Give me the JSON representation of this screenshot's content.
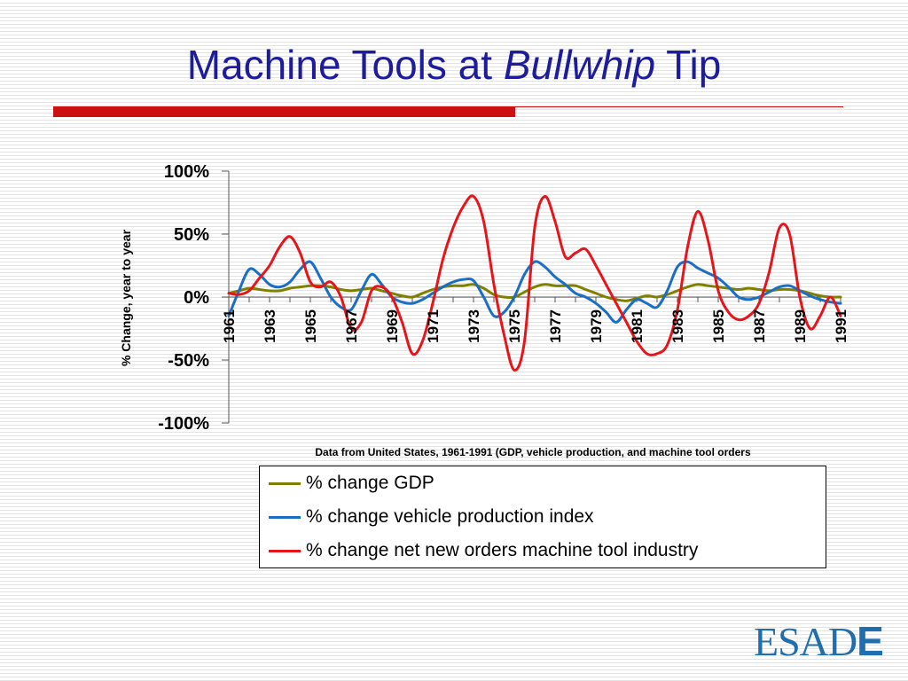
{
  "slide": {
    "title_prefix": "Machine Tools at ",
    "title_italic": "Bullwhip",
    "title_suffix": " Tip"
  },
  "logo": {
    "text_main": "ESAD",
    "text_last": "E"
  },
  "colors": {
    "title": "#1c1c9c",
    "accent_bar": "#cc1111",
    "gdp": "#808000",
    "vehicle": "#1a6fc4",
    "orders": "#e8141a",
    "logo": "#1f6fae"
  },
  "chart_data": {
    "type": "line",
    "title": "",
    "ylabel": "% Change, year to year",
    "xlabel": "Data from United States, 1961-1991 (GDP, vehicle production, and machine tool orders",
    "ylim": [
      -100,
      100
    ],
    "yticks": [
      100,
      50,
      0,
      -50,
      -100
    ],
    "ytick_labels": [
      "100%",
      "50%",
      "0%",
      "-50%",
      "-100%"
    ],
    "xlim": [
      1961,
      1991
    ],
    "xticks": [
      1961,
      1963,
      1965,
      1967,
      1969,
      1971,
      1973,
      1975,
      1977,
      1979,
      1981,
      1983,
      1985,
      1987,
      1989,
      1991
    ],
    "xtick_labels": [
      "1961",
      "1963",
      "1965",
      "1967",
      "1969",
      "1971",
      "1973",
      "1975",
      "1977",
      "1979",
      "1981",
      "1983",
      "1985",
      "1987",
      "1989",
      "1991"
    ],
    "grid": false,
    "legend_position": "bottom",
    "series": [
      {
        "name": "% change GDP",
        "color": "#808000",
        "x": [
          1961,
          1961.5,
          1962,
          1962.5,
          1963,
          1963.5,
          1964,
          1964.5,
          1965,
          1965.5,
          1966,
          1966.5,
          1967,
          1967.5,
          1968,
          1968.5,
          1969,
          1969.5,
          1970,
          1970.5,
          1971,
          1971.5,
          1972,
          1972.5,
          1973,
          1973.5,
          1974,
          1974.5,
          1975,
          1975.5,
          1976,
          1976.5,
          1977,
          1977.5,
          1978,
          1978.5,
          1979,
          1979.5,
          1980,
          1980.5,
          1981,
          1981.5,
          1982,
          1982.5,
          1983,
          1983.5,
          1984,
          1984.5,
          1985,
          1985.5,
          1986,
          1986.5,
          1987,
          1987.5,
          1988,
          1988.5,
          1989,
          1989.5,
          1990,
          1990.5,
          1991
        ],
        "y": [
          3,
          5,
          7,
          6,
          5,
          5,
          7,
          8,
          9,
          9,
          8,
          6,
          5,
          6,
          7,
          5,
          3,
          1,
          0,
          3,
          6,
          8,
          9,
          9,
          10,
          7,
          2,
          0,
          0,
          4,
          8,
          10,
          9,
          9,
          9,
          6,
          3,
          0,
          -2,
          -3,
          -1,
          1,
          0,
          2,
          5,
          8,
          10,
          9,
          8,
          7,
          6,
          7,
          6,
          5,
          6,
          6,
          5,
          3,
          1,
          0,
          0
        ]
      },
      {
        "name": "% change vehicle production index",
        "color": "#1a6fc4",
        "x": [
          1961,
          1961.5,
          1962,
          1962.5,
          1963,
          1963.5,
          1964,
          1964.5,
          1965,
          1965.5,
          1966,
          1966.5,
          1967,
          1967.5,
          1968,
          1968.5,
          1969,
          1969.5,
          1970,
          1970.5,
          1971,
          1971.5,
          1972,
          1972.5,
          1973,
          1973.5,
          1974,
          1974.5,
          1975,
          1975.5,
          1976,
          1976.5,
          1977,
          1977.5,
          1978,
          1978.5,
          1979,
          1979.5,
          1980,
          1980.5,
          1981,
          1981.5,
          1982,
          1982.5,
          1983,
          1983.5,
          1984,
          1984.5,
          1985,
          1985.5,
          1986,
          1986.5,
          1987,
          1987.5,
          1988,
          1988.5,
          1989,
          1989.5,
          1990,
          1990.5,
          1991
        ],
        "y": [
          -15,
          5,
          22,
          18,
          10,
          8,
          12,
          22,
          28,
          15,
          0,
          -8,
          -10,
          5,
          18,
          10,
          0,
          -4,
          -5,
          -2,
          3,
          8,
          12,
          14,
          13,
          0,
          -15,
          -12,
          0,
          18,
          28,
          24,
          16,
          10,
          3,
          0,
          -5,
          -12,
          -20,
          -10,
          -2,
          -5,
          -8,
          5,
          24,
          28,
          23,
          19,
          15,
          8,
          0,
          -2,
          0,
          4,
          8,
          9,
          5,
          1,
          -2,
          -4,
          -5
        ]
      },
      {
        "name": "% change net new orders machine tool industry",
        "color": "#e8141a",
        "x": [
          1961,
          1961.5,
          1962,
          1962.5,
          1963,
          1963.5,
          1964,
          1964.5,
          1965,
          1965.5,
          1966,
          1966.5,
          1967,
          1967.5,
          1968,
          1968.5,
          1969,
          1969.5,
          1970,
          1970.5,
          1971,
          1971.5,
          1972,
          1972.5,
          1973,
          1973.5,
          1974,
          1974.5,
          1975,
          1975.5,
          1976,
          1976.5,
          1977,
          1977.5,
          1978,
          1978.5,
          1979,
          1979.5,
          1980,
          1980.5,
          1981,
          1981.5,
          1982,
          1982.5,
          1983,
          1983.5,
          1984,
          1984.5,
          1985,
          1985.5,
          1986,
          1986.5,
          1987,
          1987.5,
          1988,
          1988.5,
          1989,
          1989.5,
          1990,
          1990.5,
          1991
        ],
        "y": [
          3,
          2,
          5,
          15,
          25,
          40,
          48,
          35,
          12,
          8,
          12,
          0,
          -25,
          -20,
          5,
          8,
          0,
          -20,
          -45,
          -35,
          -5,
          30,
          55,
          72,
          80,
          60,
          10,
          -30,
          -58,
          -35,
          55,
          80,
          60,
          32,
          35,
          38,
          25,
          10,
          -5,
          -20,
          -35,
          -45,
          -45,
          -38,
          -10,
          40,
          68,
          45,
          5,
          -12,
          -18,
          -15,
          -5,
          20,
          55,
          50,
          0,
          -25,
          -15,
          0,
          -15
        ]
      }
    ]
  }
}
